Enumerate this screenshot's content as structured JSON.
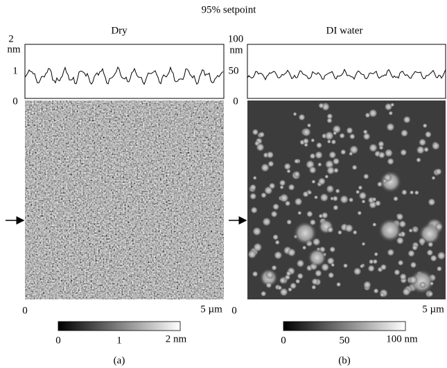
{
  "title": "95% setpoint",
  "panels": [
    {
      "condition": "Dry",
      "label": "(a)",
      "profile_axis": {
        "top": "2",
        "unit": "nm",
        "mid": "1",
        "bottom": "0"
      },
      "scale": {
        "start": "0",
        "end": "5 µm"
      },
      "colorbar": {
        "ticks": [
          "0",
          "1",
          "2 nm"
        ]
      }
    },
    {
      "condition": "DI water",
      "label": "(b)",
      "profile_axis": {
        "top": "100",
        "unit": "nm",
        "mid": "50",
        "bottom": "0"
      },
      "scale": {
        "start": "0",
        "end": "5 µm"
      },
      "colorbar": {
        "ticks": [
          "0",
          "50",
          "100 nm"
        ]
      }
    }
  ]
}
